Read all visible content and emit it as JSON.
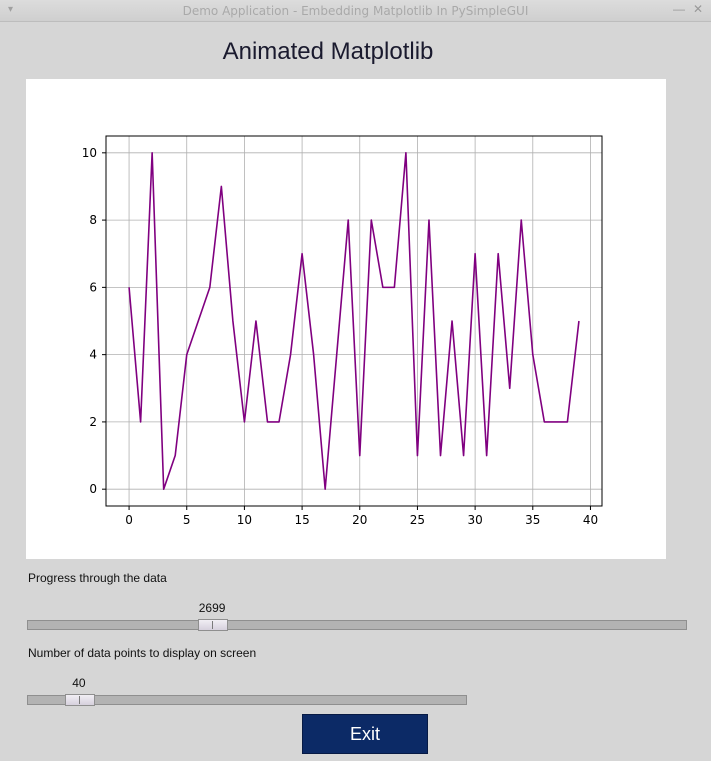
{
  "window": {
    "title": "Demo Application - Embedding Matplotlib In PySimpleGUI",
    "menu_icon": "▾",
    "minimize_icon": "—",
    "close_icon": "✕"
  },
  "heading": "Animated Matplotlib",
  "progress": {
    "label": "Progress through the data",
    "value": "2699",
    "position_fraction": 0.27
  },
  "points": {
    "label": "Number of data points to display on screen",
    "value": "40",
    "position_fraction": 0.09
  },
  "exit_label": "Exit",
  "chart_data": {
    "type": "line",
    "x": [
      0,
      1,
      2,
      3,
      4,
      5,
      6,
      7,
      8,
      9,
      10,
      11,
      12,
      13,
      14,
      15,
      16,
      17,
      18,
      19,
      20,
      21,
      22,
      23,
      24,
      25,
      26,
      27,
      28,
      29,
      30,
      31,
      32,
      33,
      34,
      35,
      36,
      37,
      38,
      39
    ],
    "y": [
      6,
      2,
      10,
      0,
      1,
      4,
      5,
      6,
      9,
      5,
      2,
      5,
      2,
      2,
      4,
      7,
      4,
      0,
      4,
      8,
      1,
      8,
      6,
      6,
      10,
      1,
      8,
      1,
      5,
      1,
      7,
      1,
      7,
      3,
      8,
      4,
      2,
      2,
      2,
      5
    ],
    "xlim": [
      -2,
      41
    ],
    "ylim": [
      -0.5,
      10.5
    ],
    "xticks": [
      0,
      5,
      10,
      15,
      20,
      25,
      30,
      35,
      40
    ],
    "yticks": [
      0,
      2,
      4,
      6,
      8,
      10
    ],
    "grid": true,
    "line_color": "#800080"
  }
}
